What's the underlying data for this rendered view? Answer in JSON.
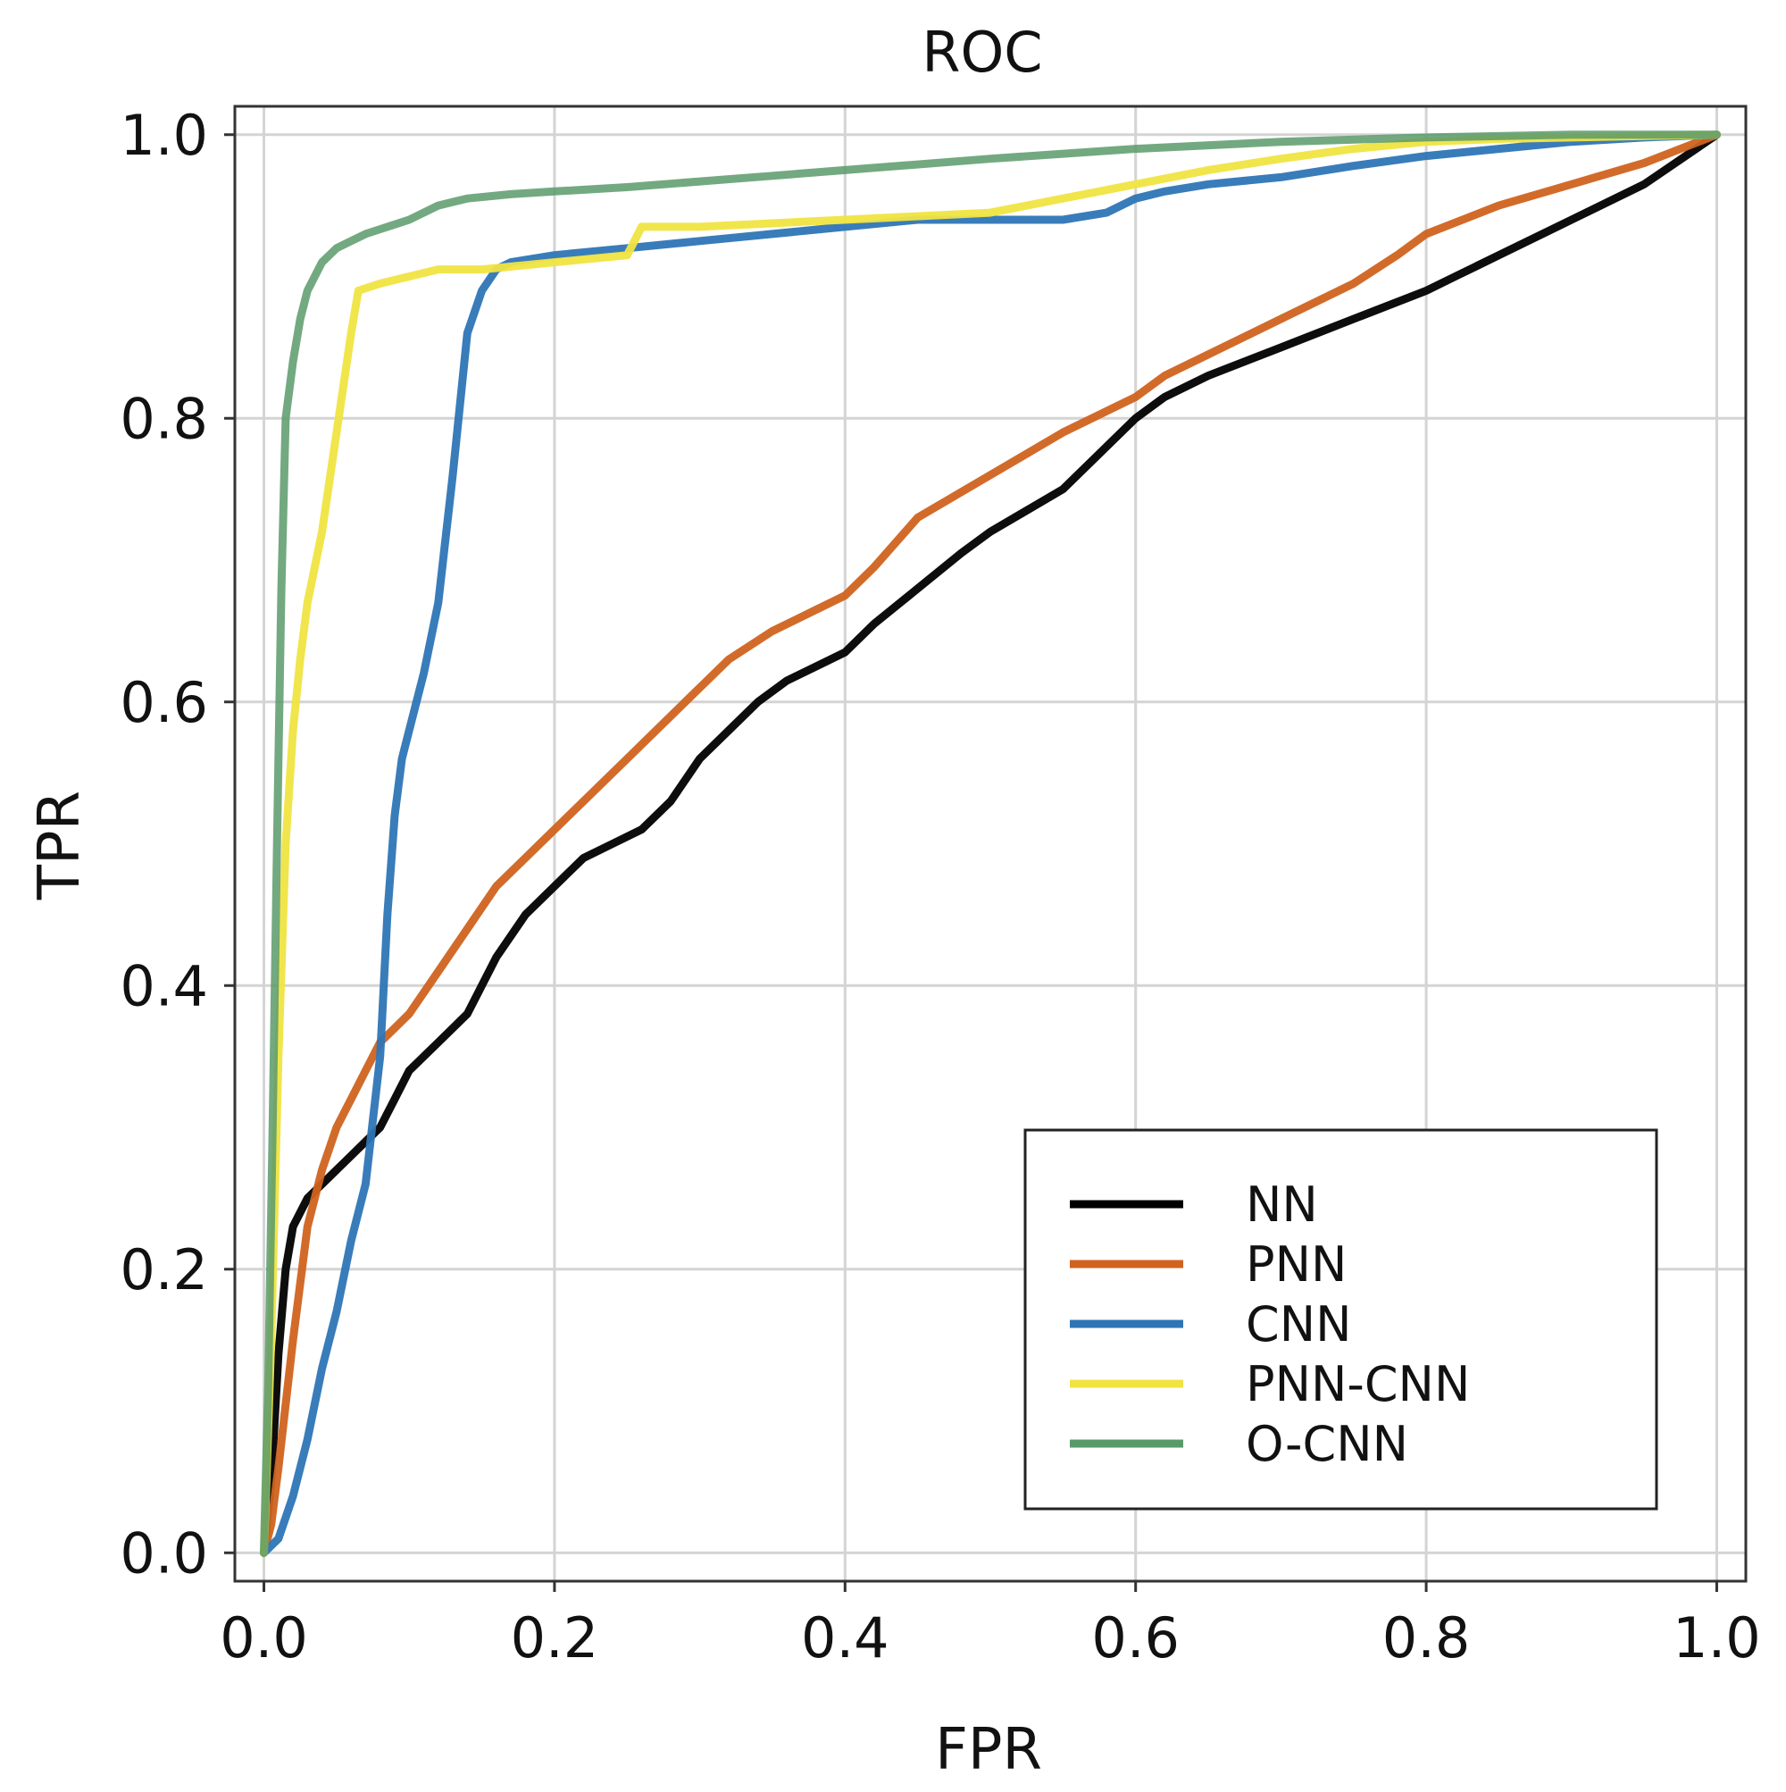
{
  "chart_data": {
    "type": "line",
    "title": "ROC",
    "xlabel": "FPR",
    "ylabel": "TPR",
    "xlim": [
      -0.02,
      1.02
    ],
    "ylim": [
      -0.02,
      1.02
    ],
    "xticks": [
      0.0,
      0.2,
      0.4,
      0.6,
      0.8,
      1.0
    ],
    "yticks": [
      0.0,
      0.2,
      0.4,
      0.6,
      0.8,
      1.0
    ],
    "xtick_labels": [
      "0.0",
      "0.2",
      "0.4",
      "0.6",
      "0.8",
      "1.0"
    ],
    "ytick_labels": [
      "0.0",
      "0.2",
      "0.4",
      "0.6",
      "0.8",
      "1.0"
    ],
    "grid": true,
    "legend_position": "lower-right",
    "series": [
      {
        "name": "NN",
        "color": "#000000",
        "x": [
          0.0,
          0.005,
          0.01,
          0.015,
          0.02,
          0.03,
          0.05,
          0.07,
          0.08,
          0.09,
          0.1,
          0.12,
          0.14,
          0.16,
          0.18,
          0.2,
          0.22,
          0.24,
          0.26,
          0.28,
          0.3,
          0.32,
          0.34,
          0.36,
          0.38,
          0.4,
          0.42,
          0.45,
          0.48,
          0.5,
          0.55,
          0.6,
          0.62,
          0.65,
          0.7,
          0.75,
          0.8,
          0.82,
          0.85,
          0.9,
          0.95,
          1.0
        ],
        "y": [
          0.0,
          0.05,
          0.14,
          0.2,
          0.23,
          0.25,
          0.27,
          0.29,
          0.3,
          0.32,
          0.34,
          0.36,
          0.38,
          0.42,
          0.45,
          0.47,
          0.49,
          0.5,
          0.51,
          0.53,
          0.56,
          0.58,
          0.6,
          0.615,
          0.625,
          0.635,
          0.655,
          0.68,
          0.705,
          0.72,
          0.75,
          0.8,
          0.815,
          0.83,
          0.85,
          0.87,
          0.89,
          0.9,
          0.915,
          0.94,
          0.965,
          1.0
        ]
      },
      {
        "name": "PNN",
        "color": "#d0631f",
        "x": [
          0.0,
          0.005,
          0.01,
          0.02,
          0.03,
          0.04,
          0.05,
          0.06,
          0.07,
          0.08,
          0.1,
          0.12,
          0.14,
          0.16,
          0.18,
          0.2,
          0.22,
          0.25,
          0.28,
          0.3,
          0.32,
          0.35,
          0.38,
          0.4,
          0.42,
          0.45,
          0.5,
          0.55,
          0.6,
          0.62,
          0.65,
          0.7,
          0.75,
          0.78,
          0.8,
          0.85,
          0.9,
          0.95,
          1.0
        ],
        "y": [
          0.0,
          0.02,
          0.06,
          0.15,
          0.23,
          0.27,
          0.3,
          0.32,
          0.34,
          0.36,
          0.38,
          0.41,
          0.44,
          0.47,
          0.49,
          0.51,
          0.53,
          0.56,
          0.59,
          0.61,
          0.63,
          0.65,
          0.665,
          0.675,
          0.695,
          0.73,
          0.76,
          0.79,
          0.815,
          0.83,
          0.845,
          0.87,
          0.895,
          0.915,
          0.93,
          0.95,
          0.965,
          0.98,
          1.0
        ]
      },
      {
        "name": "CNN",
        "color": "#2e75b6",
        "x": [
          0.0,
          0.01,
          0.02,
          0.03,
          0.04,
          0.05,
          0.06,
          0.07,
          0.08,
          0.085,
          0.09,
          0.095,
          0.1,
          0.11,
          0.12,
          0.13,
          0.14,
          0.15,
          0.16,
          0.17,
          0.2,
          0.25,
          0.3,
          0.35,
          0.4,
          0.45,
          0.5,
          0.55,
          0.58,
          0.6,
          0.62,
          0.65,
          0.7,
          0.75,
          0.8,
          0.85,
          0.9,
          0.95,
          1.0
        ],
        "y": [
          0.0,
          0.01,
          0.04,
          0.08,
          0.13,
          0.17,
          0.22,
          0.26,
          0.35,
          0.45,
          0.52,
          0.56,
          0.58,
          0.62,
          0.67,
          0.76,
          0.86,
          0.89,
          0.905,
          0.91,
          0.915,
          0.92,
          0.925,
          0.93,
          0.935,
          0.94,
          0.94,
          0.94,
          0.945,
          0.955,
          0.96,
          0.965,
          0.97,
          0.978,
          0.985,
          0.99,
          0.995,
          0.998,
          1.0
        ]
      },
      {
        "name": "PNN-CNN",
        "color": "#f0e442",
        "x": [
          0.0,
          0.005,
          0.01,
          0.015,
          0.02,
          0.025,
          0.03,
          0.04,
          0.05,
          0.06,
          0.065,
          0.08,
          0.1,
          0.12,
          0.15,
          0.2,
          0.25,
          0.26,
          0.3,
          0.4,
          0.5,
          0.55,
          0.6,
          0.65,
          0.7,
          0.75,
          0.8,
          0.85,
          0.9,
          0.95,
          1.0
        ],
        "y": [
          0.0,
          0.15,
          0.35,
          0.5,
          0.58,
          0.63,
          0.67,
          0.72,
          0.79,
          0.86,
          0.89,
          0.895,
          0.9,
          0.905,
          0.905,
          0.91,
          0.915,
          0.935,
          0.935,
          0.94,
          0.945,
          0.955,
          0.965,
          0.975,
          0.983,
          0.99,
          0.995,
          0.997,
          0.998,
          0.999,
          1.0
        ]
      },
      {
        "name": "O-CNN",
        "color": "#5a9a6a",
        "x": [
          0.0,
          0.003,
          0.006,
          0.009,
          0.012,
          0.015,
          0.02,
          0.025,
          0.03,
          0.04,
          0.05,
          0.07,
          0.1,
          0.12,
          0.14,
          0.17,
          0.2,
          0.25,
          0.3,
          0.35,
          0.4,
          0.5,
          0.6,
          0.7,
          0.8,
          0.9,
          1.0
        ],
        "y": [
          0.0,
          0.12,
          0.3,
          0.5,
          0.68,
          0.8,
          0.84,
          0.87,
          0.89,
          0.91,
          0.92,
          0.93,
          0.94,
          0.95,
          0.955,
          0.958,
          0.96,
          0.963,
          0.967,
          0.971,
          0.975,
          0.983,
          0.99,
          0.995,
          0.998,
          1.0,
          1.0
        ]
      }
    ]
  }
}
